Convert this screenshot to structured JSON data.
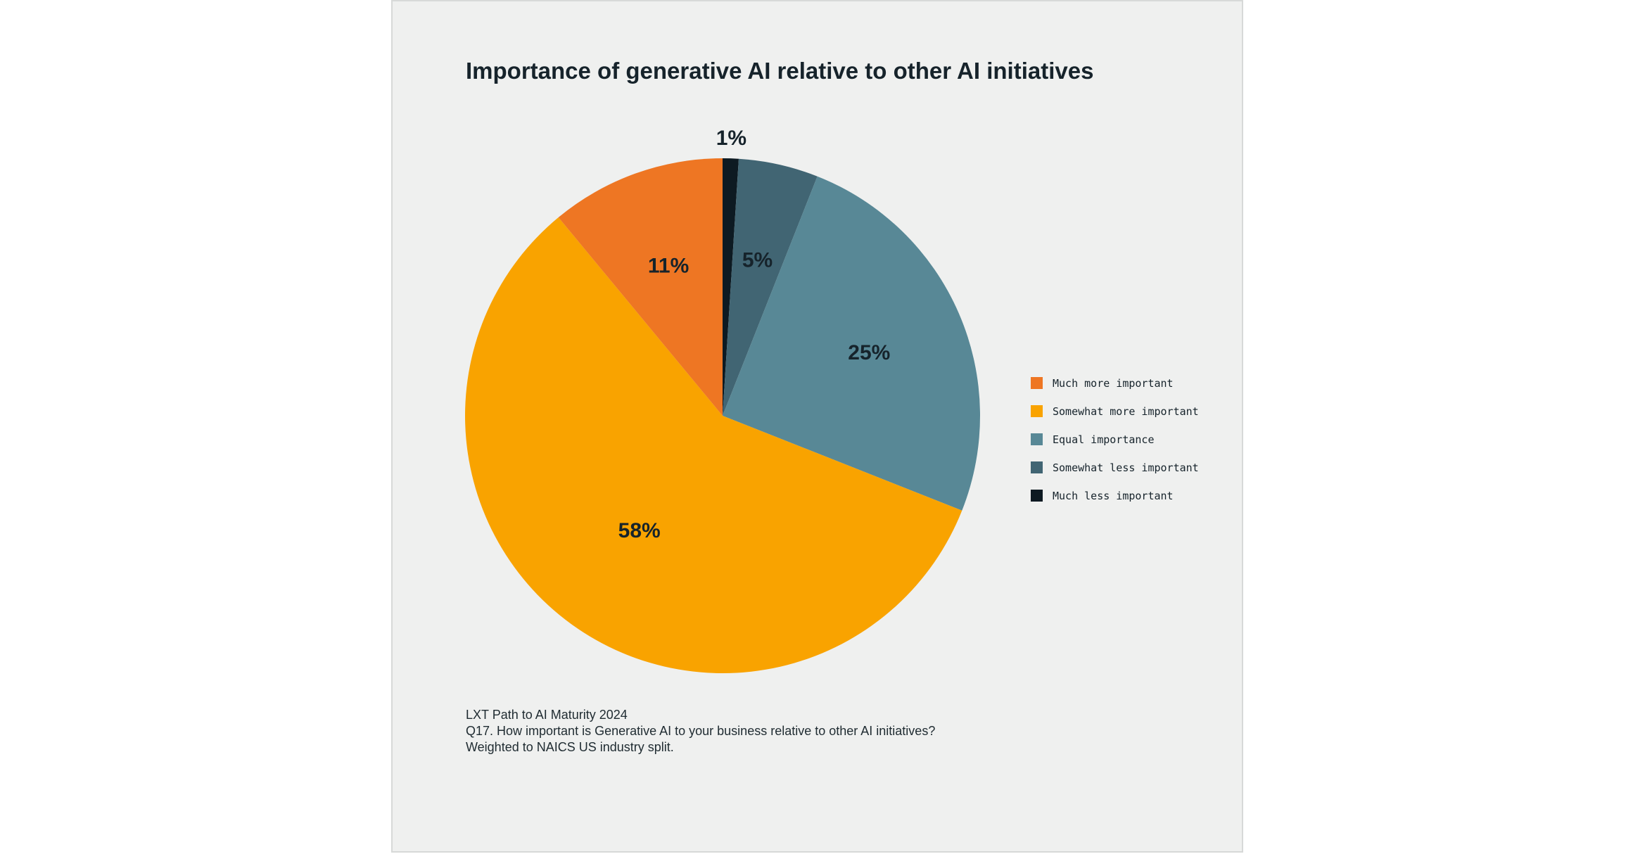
{
  "chart_data": {
    "type": "pie",
    "title": "Importance of generative AI relative to other AI initiatives",
    "categories": [
      "Much more important",
      "Somewhat more important",
      "Equal importance",
      "Somewhat less important",
      "Much less important"
    ],
    "values": [
      11,
      58,
      25,
      5,
      1
    ],
    "value_labels": [
      "11%",
      "58%",
      "25%",
      "5%",
      "1%"
    ],
    "colors": [
      "#ee7623",
      "#f9a300",
      "#588896",
      "#416573",
      "#0d1a22"
    ],
    "legend_position": "right"
  },
  "source": {
    "line1": "LXT Path to AI Maturity 2024",
    "line2": "Q17. How important is Generative AI to your business relative to other AI initiatives?",
    "line3": "Weighted to NAICS US industry split."
  }
}
